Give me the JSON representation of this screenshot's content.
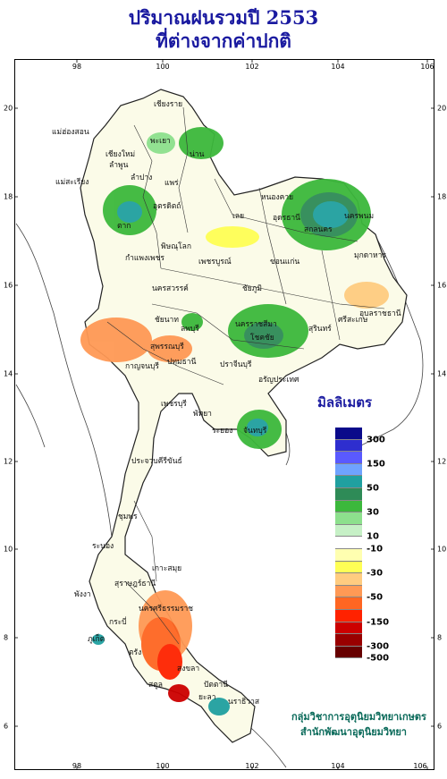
{
  "title_line1": "ปริมาณฝนรวมปี  2553",
  "title_line2": "ที่ต่างจากค่าปกติ",
  "axis": {
    "lon_ticks": [
      "98",
      "100",
      "102",
      "104",
      "106"
    ],
    "lat_ticks": [
      "20",
      "18",
      "16",
      "14",
      "12",
      "10",
      "8",
      "6"
    ]
  },
  "places": [
    "เชียงราย",
    "แม่ฮ่องสอน",
    "พะเยา",
    "เชียงใหม่",
    "น่าน",
    "ลำพูน",
    "ลำปาง",
    "แพร่",
    "แม่สะเรียง",
    "อุตรดิตถ์",
    "ตาก",
    "หนองคาย",
    "อุดรธานี",
    "สกลนคร",
    "นครพนม",
    "เลย",
    "พิษณุโลก",
    "กำแพงเพชร",
    "เพชรบูรณ์",
    "มุกดาหาร",
    "ขอนแก่น",
    "นครสวรรค์",
    "ชัยภูมิ",
    "อุบลราชธานี",
    "ลพบุรี",
    "ชัยนาท",
    "นครราชสีมา",
    "สุรินทร์",
    "สุพรรณบุรี",
    "โชคชัย",
    "ศรีสะเกษ",
    "กาญจนบุรี",
    "ปทุมธานี",
    "ปราจีนบุรี",
    "อรัญประเทศ",
    "เพชรบุรี",
    "พัทยา",
    "ระยอง",
    "จันทบุรี",
    "ประจวบคีรีขันธ์",
    "ชุมพร",
    "ระนอง",
    "เกาะสมุย",
    "สุราษฎร์ธานี",
    "พังงา",
    "นครศรีธรรมราช",
    "ภูเก็ต",
    "กระบี่",
    "ตรัง",
    "สงขลา",
    "สตูล",
    "ปัตตานี",
    "ยะลา",
    "นราธิวาส"
  ],
  "legend": {
    "title": "มิลลิเมตร",
    "labels": [
      "300",
      "150",
      "50",
      "30",
      "10",
      "-10",
      "-30",
      "-50",
      "-150",
      "-300",
      "-500"
    ],
    "colors": [
      "#0a0a8a",
      "#2e2ecf",
      "#5a5aff",
      "#6fa3ff",
      "#20a0a0",
      "#2e8b57",
      "#3cb83c",
      "#8de08d",
      "#c6f0c6",
      "#ffffff",
      "#ffffb0",
      "#ffff55",
      "#ffcc80",
      "#ff9955",
      "#ff6622",
      "#ff2200",
      "#cc0000",
      "#990000",
      "#660000"
    ]
  },
  "credit_line1": "กลุ่มวิชาการอุตุนิยมวิทยาเกษตร",
  "credit_line2": "สำนักพัฒนาอุตุนิยมวิทยา"
}
